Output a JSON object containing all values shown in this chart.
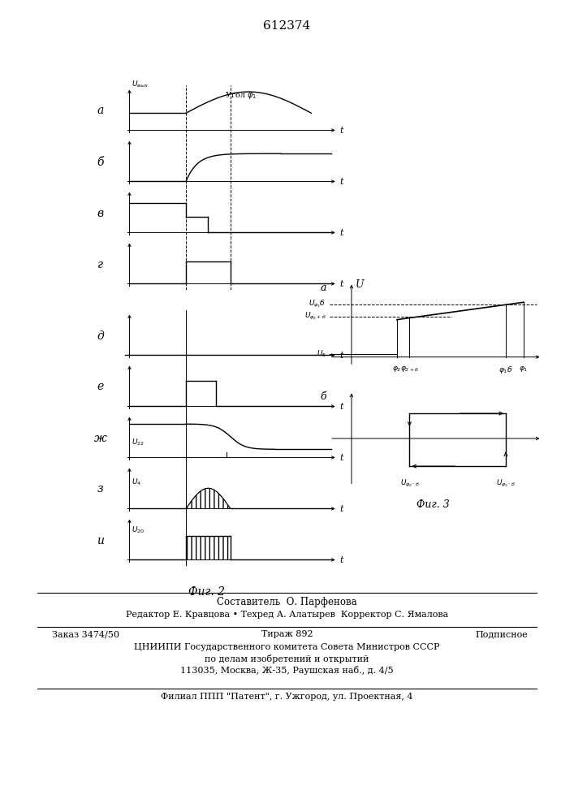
{
  "title": "612374",
  "fig2_label": "Фиг. 2",
  "fig3_label": "Фиг. 3",
  "bg_color": "#ffffff",
  "row_labels": [
    "а",
    "б",
    "в",
    "г",
    "д",
    "е",
    "ж",
    "з",
    "и"
  ],
  "footer_lines": [
    "Составитель  О. Парфенова",
    "Редактор Е. Кравцова • Техред А. Алатырев  Корректор С. Ямалова",
    "ЦНИИПИ Государственного комитета Совета Министров СССР",
    "по делам изобретений и открытий",
    "113035, Москва, Ж-35, Раушская наб., д. 4/5",
    "Филиал ППП \"Патент\", г. Ужгород, ул. Проектная, 4"
  ]
}
